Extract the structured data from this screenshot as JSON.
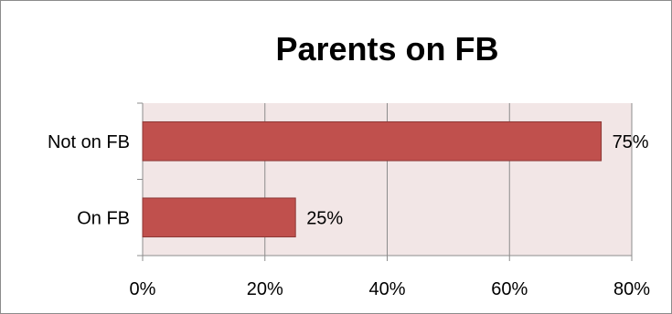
{
  "chart_data": {
    "type": "bar",
    "orientation": "horizontal",
    "title": "Parents on FB",
    "categories": [
      "Not on FB",
      "On FB"
    ],
    "series": [
      {
        "values": [
          75,
          25
        ],
        "data_labels": [
          "75%",
          "25%"
        ]
      }
    ],
    "xlim": [
      0,
      80
    ],
    "xticks": [
      0,
      20,
      40,
      60,
      80
    ],
    "xtick_labels": [
      "0%",
      "20%",
      "40%",
      "60%",
      "80%"
    ],
    "xlabel": "",
    "ylabel": "",
    "grid": "vertical",
    "legend": "none",
    "colors": {
      "bar": "#c0504d",
      "bar_border": "#8c3836",
      "plot_background": "#f2e6e6",
      "gridline": "#8c8c8c"
    }
  }
}
